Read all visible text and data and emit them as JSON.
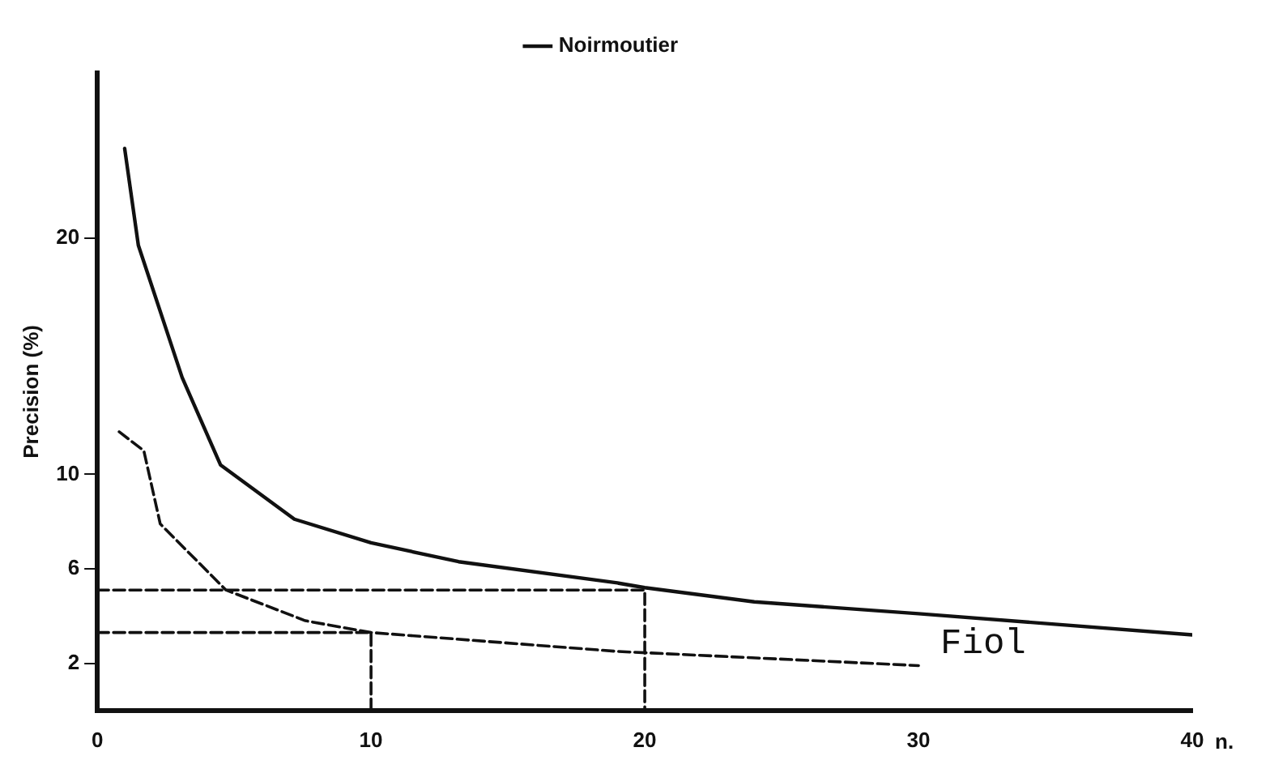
{
  "chart_data": {
    "type": "line",
    "ylabel": "Precision (%)",
    "xlabel": "n.",
    "xlim": [
      0,
      40
    ],
    "xticks": [
      0,
      10,
      20,
      30,
      40
    ],
    "ylim": [
      0,
      27
    ],
    "yticks": [
      2,
      6,
      10,
      20
    ],
    "grid": false,
    "legend": "top",
    "marker": "none",
    "series": [
      {
        "name": "Noirmoutier",
        "color": "#111111",
        "line_style": "solid",
        "x": [
          1,
          1.5,
          3.1,
          4.5,
          7.2,
          10,
          13.2,
          19,
          20,
          24,
          30,
          40
        ],
        "values": [
          23.8,
          19.7,
          14.1,
          10.4,
          8.1,
          7.1,
          6.3,
          5.4,
          5.2,
          4.6,
          4.1,
          3.2
        ]
      },
      {
        "color": "#111111",
        "line_style": "dashed",
        "x": [
          0.8,
          1.7,
          2.3,
          4.7,
          7.6,
          10,
          19,
          30
        ],
        "values": [
          11.8,
          11,
          7.9,
          5.1,
          3.8,
          3.3,
          2.5,
          1.9
        ]
      },
      {
        "color": "#111111",
        "line_style": "dashed",
        "x": [
          0,
          20,
          20
        ],
        "values": [
          5.1,
          5.1,
          0
        ]
      },
      {
        "color": "#111111",
        "line_style": "dashed",
        "x": [
          0,
          10,
          10
        ],
        "values": [
          3.3,
          3.3,
          0
        ]
      }
    ],
    "annotations": [
      "Fiol"
    ]
  }
}
